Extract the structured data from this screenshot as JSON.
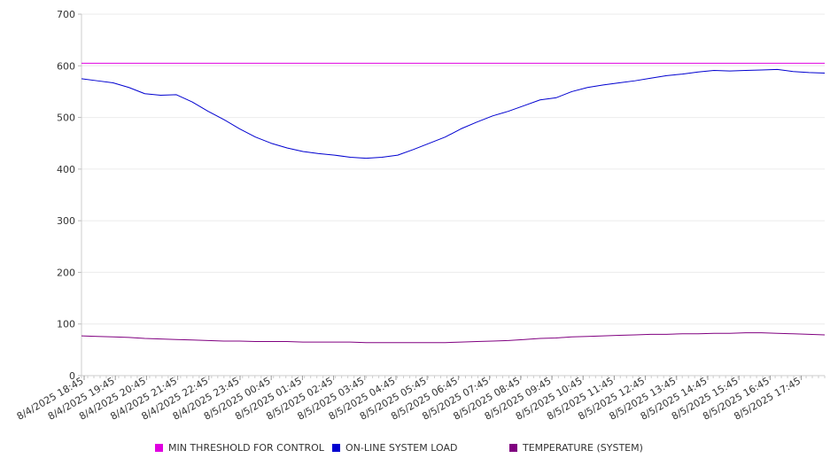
{
  "chart_data": {
    "type": "line",
    "title": "",
    "xlabel": "",
    "ylabel": "",
    "ylim": [
      0,
      700
    ],
    "y_ticks": [
      0,
      100,
      200,
      300,
      400,
      500,
      600,
      700
    ],
    "grid": true,
    "legend_position": "bottom",
    "x_tick_labels": [
      "8/4/2025 18:45",
      "8/4/2025 19:45",
      "8/4/2025 20:45",
      "8/4/2025 21:45",
      "8/4/2025 22:45",
      "8/4/2025 23:45",
      "8/5/2025 00:45",
      "8/5/2025 01:45",
      "8/5/2025 02:45",
      "8/5/2025 03:45",
      "8/5/2025 04:45",
      "8/5/2025 05:45",
      "8/5/2025 06:45",
      "8/5/2025 07:45",
      "8/5/2025 08:45",
      "8/5/2025 09:45",
      "8/5/2025 10:45",
      "8/5/2025 11:45",
      "8/5/2025 12:45",
      "8/5/2025 13:45",
      "8/5/2025 14:45",
      "8/5/2025 15:45",
      "8/5/2025 16:45",
      "8/5/2025 17:45"
    ],
    "x": [
      "8/4/2025 18:45",
      "8/4/2025 19:15",
      "8/4/2025 19:45",
      "8/4/2025 20:15",
      "8/4/2025 20:45",
      "8/4/2025 21:15",
      "8/4/2025 21:45",
      "8/4/2025 22:15",
      "8/4/2025 22:45",
      "8/4/2025 23:15",
      "8/4/2025 23:45",
      "8/5/2025 00:15",
      "8/5/2025 00:45",
      "8/5/2025 01:15",
      "8/5/2025 01:45",
      "8/5/2025 02:15",
      "8/5/2025 02:45",
      "8/5/2025 03:15",
      "8/5/2025 03:45",
      "8/5/2025 04:15",
      "8/5/2025 04:45",
      "8/5/2025 05:15",
      "8/5/2025 05:45",
      "8/5/2025 06:15",
      "8/5/2025 06:45",
      "8/5/2025 07:15",
      "8/5/2025 07:45",
      "8/5/2025 08:15",
      "8/5/2025 08:45",
      "8/5/2025 09:15",
      "8/5/2025 09:45",
      "8/5/2025 10:15",
      "8/5/2025 10:45",
      "8/5/2025 11:15",
      "8/5/2025 11:45",
      "8/5/2025 12:15",
      "8/5/2025 12:45",
      "8/5/2025 13:15",
      "8/5/2025 13:45",
      "8/5/2025 14:15",
      "8/5/2025 14:45",
      "8/5/2025 15:15",
      "8/5/2025 15:45",
      "8/5/2025 16:15",
      "8/5/2025 16:45",
      "8/5/2025 17:15",
      "8/5/2025 17:45",
      "8/5/2025 18:15"
    ],
    "series": [
      {
        "name": "MIN THRESHOLD FOR CONTROL",
        "color": "#e000e0",
        "values": [
          605,
          605,
          605,
          605,
          605,
          605,
          605,
          605,
          605,
          605,
          605,
          605,
          605,
          605,
          605,
          605,
          605,
          605,
          605,
          605,
          605,
          605,
          605,
          605,
          605,
          605,
          605,
          605,
          605,
          605,
          605,
          605,
          605,
          605,
          605,
          605,
          605,
          605,
          605,
          605,
          605,
          605,
          605,
          605,
          605,
          605,
          605,
          605
        ]
      },
      {
        "name": "ON-LINE SYSTEM LOAD",
        "color": "#0000d0",
        "values": [
          575,
          571,
          567,
          558,
          546,
          543,
          544,
          530,
          512,
          496,
          478,
          462,
          450,
          441,
          434,
          430,
          427,
          423,
          421,
          423,
          427,
          438,
          450,
          462,
          478,
          491,
          503,
          512,
          523,
          534,
          538,
          550,
          558,
          563,
          567,
          571,
          576,
          581,
          584,
          588,
          591,
          590,
          591,
          592,
          593,
          589,
          587,
          586
        ]
      },
      {
        "name": "TEMPERATURE (SYSTEM)",
        "color": "#800080",
        "values": [
          77,
          76,
          75,
          74,
          72,
          71,
          70,
          69,
          68,
          67,
          67,
          66,
          66,
          66,
          65,
          65,
          65,
          65,
          64,
          64,
          64,
          64,
          64,
          64,
          65,
          66,
          67,
          68,
          70,
          72,
          73,
          75,
          76,
          77,
          78,
          79,
          80,
          80,
          81,
          81,
          82,
          82,
          83,
          83,
          82,
          81,
          80,
          79
        ]
      }
    ]
  }
}
